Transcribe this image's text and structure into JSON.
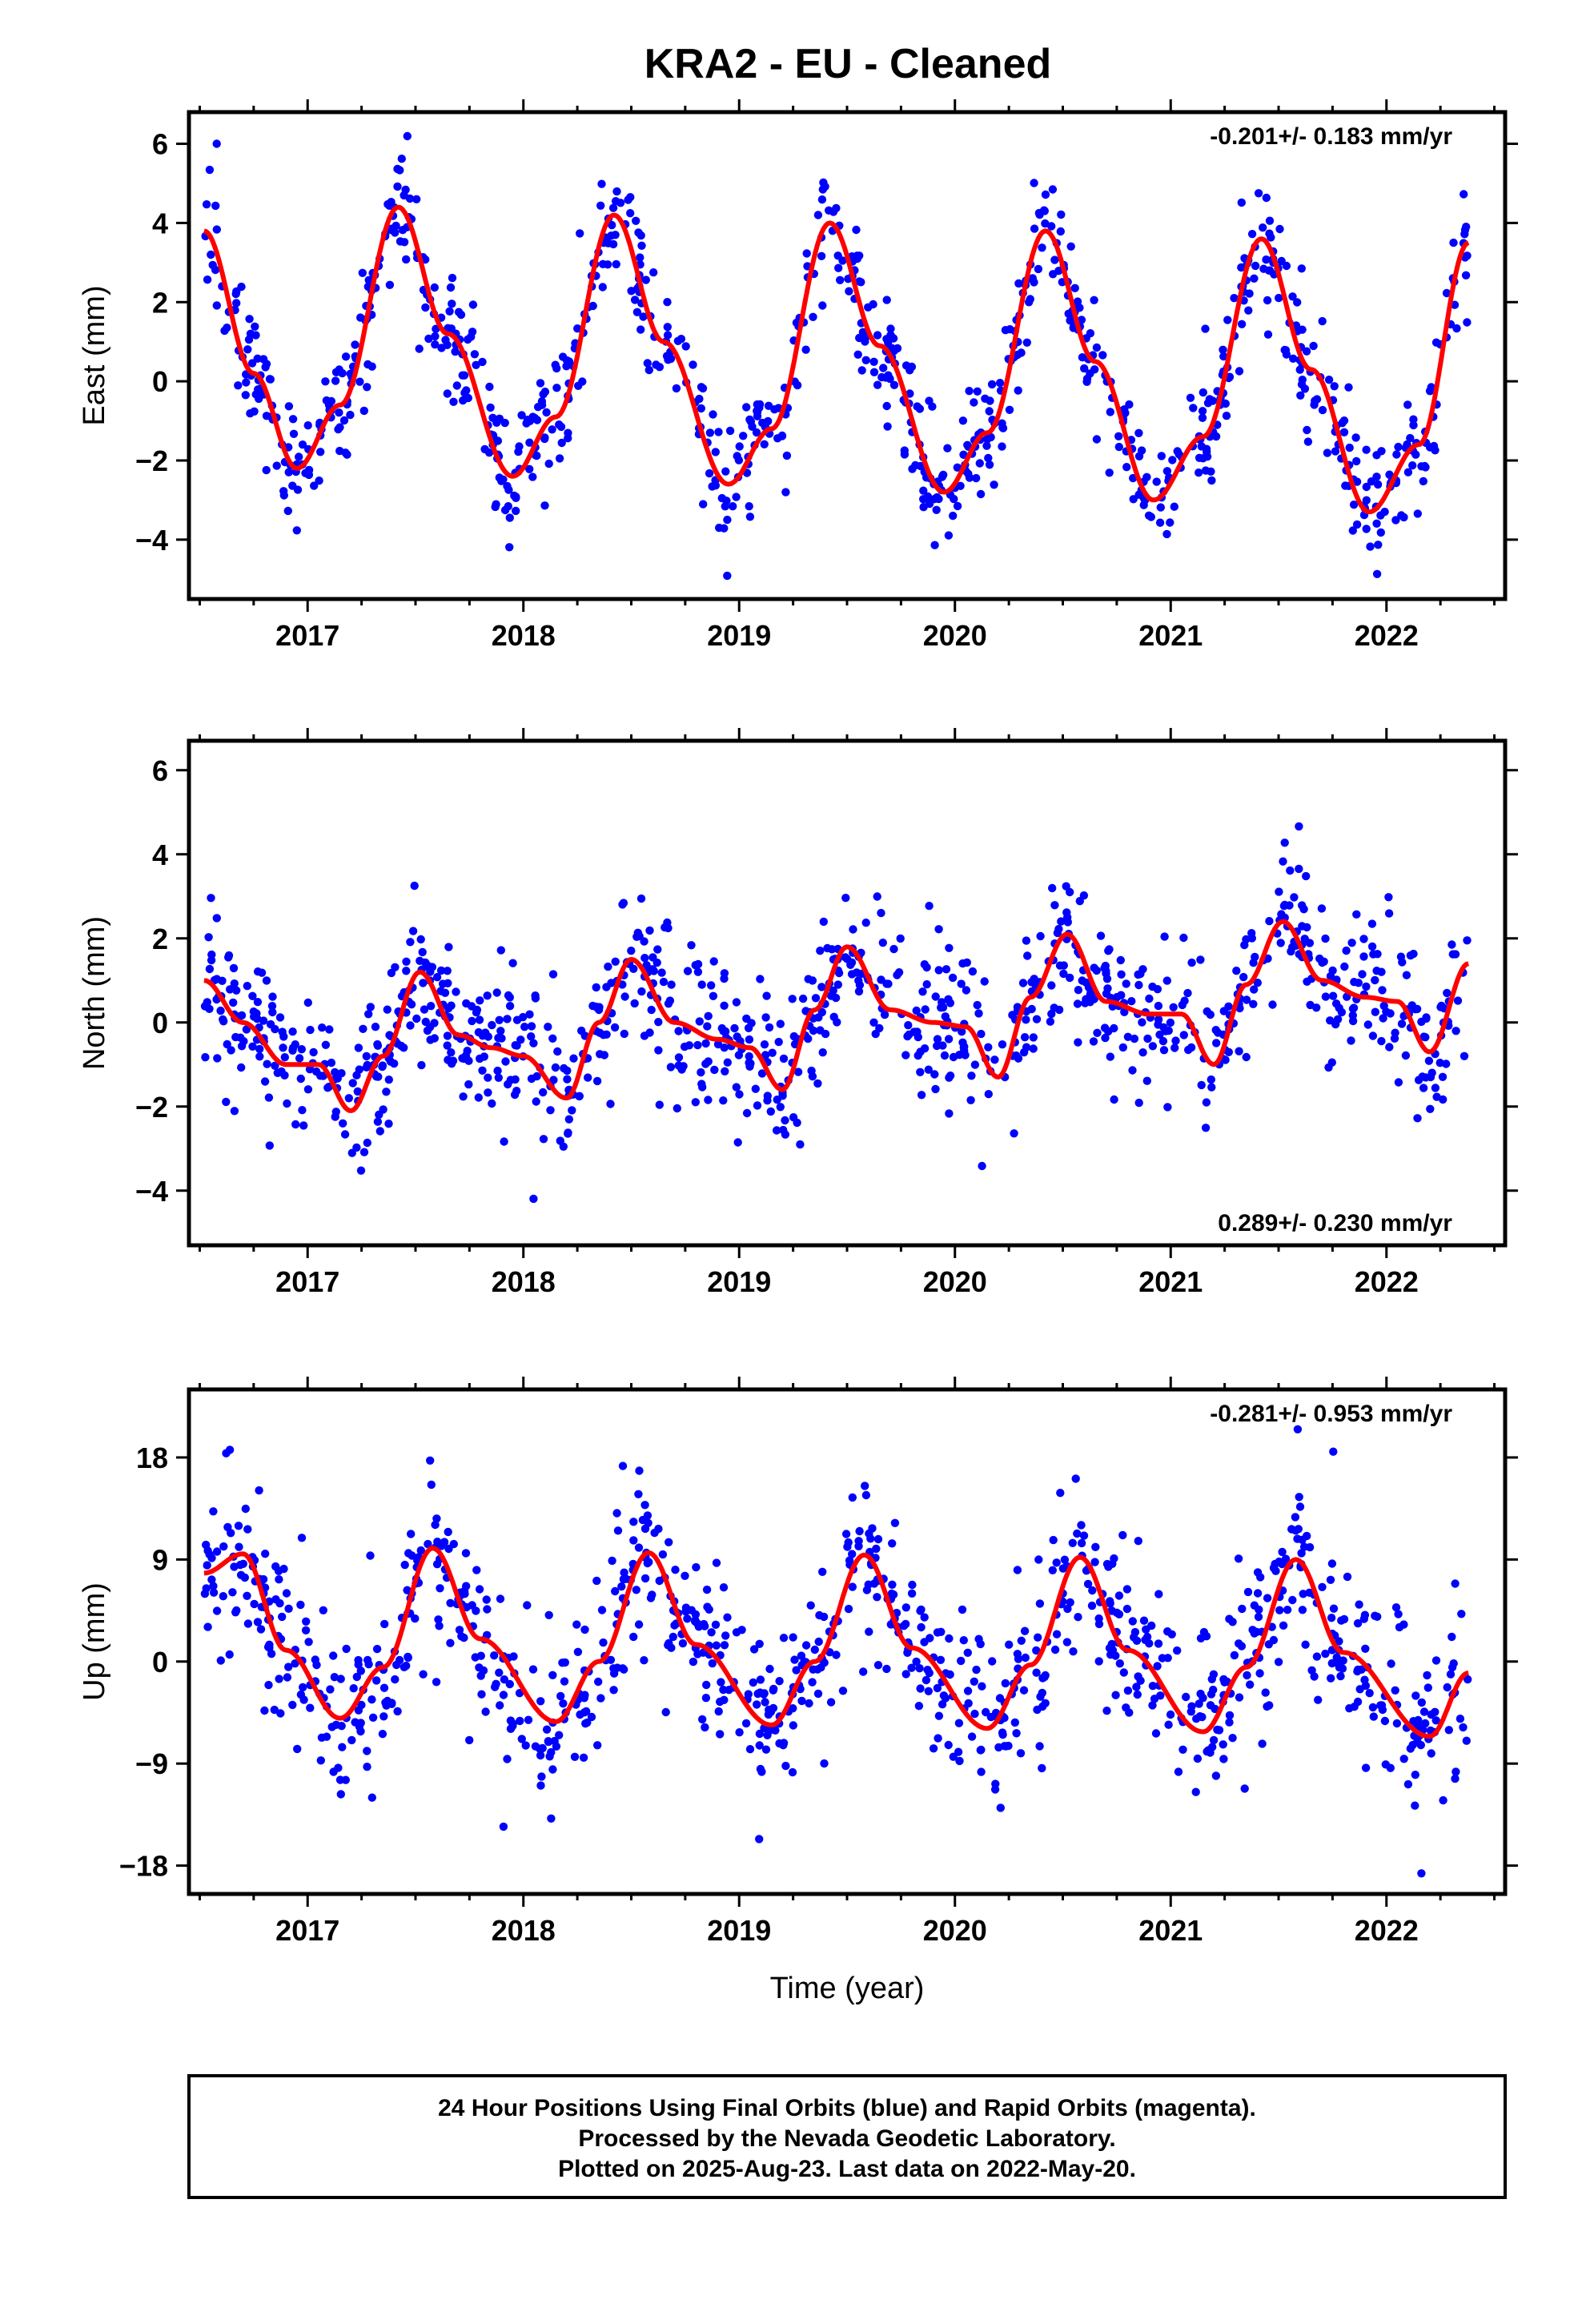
{
  "title": "KRA2  - EU - Cleaned",
  "colors": {
    "points": "#0000ff",
    "fit": "#ff0000",
    "frame": "#000000"
  },
  "footer": {
    "line1": "24 Hour Positions Using Final Orbits (blue) and Rapid Orbits (magenta).",
    "line2": "Processed by the Nevada Geodetic Laboratory.",
    "line3": "Plotted on 2025-Aug-23. Last data on 2022-May-20."
  },
  "chart_data": [
    {
      "type": "scatter",
      "title": "KRA2  - EU - Cleaned",
      "xlabel": "",
      "ylabel": "East (mm)",
      "xlim": [
        2016.45,
        2022.55
      ],
      "ylim": [
        -5.5,
        6.8
      ],
      "x_ticks": [
        2017,
        2018,
        2019,
        2020,
        2021,
        2022
      ],
      "y_ticks": [
        -4,
        -2,
        0,
        2,
        4,
        6
      ],
      "y_tick_labels": [
        "−4",
        "−2",
        "0",
        "2",
        "4",
        "6"
      ],
      "rate_label": "-0.201+/- 0.183 mm/yr",
      "rate_position": "top-right",
      "data_start": 2016.52,
      "data_end": 2022.38,
      "fit": {
        "series_name": "",
        "x": [
          2016.52,
          2016.75,
          2016.95,
          2017.15,
          2017.42,
          2017.65,
          2017.95,
          2018.15,
          2018.42,
          2018.65,
          2018.95,
          2019.15,
          2019.42,
          2019.65,
          2019.95,
          2020.15,
          2020.42,
          2020.65,
          2020.92,
          2021.15,
          2021.42,
          2021.65,
          2021.92,
          2022.15,
          2022.38
        ],
        "y": [
          3.8,
          0.2,
          -2.2,
          -0.6,
          4.4,
          1.2,
          -2.4,
          -0.9,
          4.2,
          1.0,
          -2.6,
          -1.2,
          4.0,
          0.9,
          -2.8,
          -1.3,
          3.8,
          0.5,
          -3.0,
          -1.4,
          3.6,
          0.3,
          -3.3,
          -1.6,
          3.5
        ]
      },
      "scatter_model": {
        "mean": 0.55,
        "amplitude": 3.35,
        "trend": -0.201,
        "phase_year": 0.41,
        "n_points": 950,
        "scatter_sigma": 0.75
      }
    },
    {
      "type": "scatter",
      "xlabel": "",
      "ylabel": "North (mm)",
      "xlim": [
        2016.45,
        2022.55
      ],
      "ylim": [
        -5.3,
        6.7
      ],
      "x_ticks": [
        2017,
        2018,
        2019,
        2020,
        2021,
        2022
      ],
      "y_ticks": [
        -4,
        -2,
        0,
        2,
        4,
        6
      ],
      "y_tick_labels": [
        "−4",
        "−2",
        "0",
        "2",
        "4",
        "6"
      ],
      "rate_label": "0.289+/- 0.230 mm/yr",
      "rate_position": "bottom-right",
      "data_start": 2016.52,
      "data_end": 2022.38,
      "fit": {
        "series_name": "",
        "x": [
          2016.52,
          2016.7,
          2016.9,
          2017.05,
          2017.2,
          2017.35,
          2017.52,
          2017.7,
          2017.85,
          2018.0,
          2018.2,
          2018.35,
          2018.5,
          2018.7,
          2018.9,
          2019.05,
          2019.2,
          2019.35,
          2019.5,
          2019.7,
          2019.9,
          2020.05,
          2020.2,
          2020.35,
          2020.52,
          2020.7,
          2020.9,
          2021.05,
          2021.2,
          2021.35,
          2021.52,
          2021.7,
          2021.9,
          2022.05,
          2022.2,
          2022.38
        ],
        "y": [
          1.0,
          0.0,
          -1.0,
          -1.0,
          -2.1,
          -0.8,
          1.2,
          -0.3,
          -0.6,
          -0.8,
          -1.8,
          0.0,
          1.5,
          0.0,
          -0.4,
          -0.6,
          -1.6,
          0.3,
          1.8,
          0.3,
          0.0,
          -0.1,
          -1.3,
          0.6,
          2.1,
          0.5,
          0.2,
          0.2,
          -1.0,
          0.9,
          2.4,
          1.0,
          0.6,
          0.5,
          -0.7,
          1.4
        ]
      },
      "scatter_model": {
        "n_points": 1000,
        "scatter_sigma": 0.85
      }
    },
    {
      "type": "scatter",
      "xlabel": "Time (year)",
      "ylabel": "Up (mm)",
      "xlim": [
        2016.45,
        2022.55
      ],
      "ylim": [
        -20.5,
        24.0
      ],
      "x_ticks": [
        2017,
        2018,
        2019,
        2020,
        2021,
        2022
      ],
      "y_ticks": [
        -18,
        -9,
        0,
        9,
        18
      ],
      "y_tick_labels": [
        "−18",
        "−9",
        "0",
        "9",
        "18"
      ],
      "rate_label": "-0.281+/- 0.953 mm/yr",
      "rate_position": "top-right",
      "data_start": 2016.52,
      "data_end": 2022.38,
      "fit": {
        "series_name": "",
        "x": [
          2016.52,
          2016.7,
          2016.9,
          2017.15,
          2017.35,
          2017.58,
          2017.8,
          2018.15,
          2018.35,
          2018.58,
          2018.8,
          2019.15,
          2019.35,
          2019.58,
          2019.8,
          2020.15,
          2020.35,
          2020.58,
          2020.8,
          2021.15,
          2021.35,
          2021.58,
          2021.8,
          2022.2,
          2022.38
        ],
        "y": [
          7.8,
          9.5,
          1.0,
          -5.0,
          -0.5,
          10.0,
          2.0,
          -5.3,
          0.0,
          9.6,
          1.5,
          -5.6,
          0.0,
          9.4,
          1.2,
          -5.9,
          -0.3,
          9.2,
          1.0,
          -6.2,
          -0.5,
          9.0,
          0.8,
          -6.6,
          -1.0
        ]
      },
      "scatter_model": {
        "n_points": 1000,
        "scatter_sigma": 3.8
      }
    }
  ]
}
